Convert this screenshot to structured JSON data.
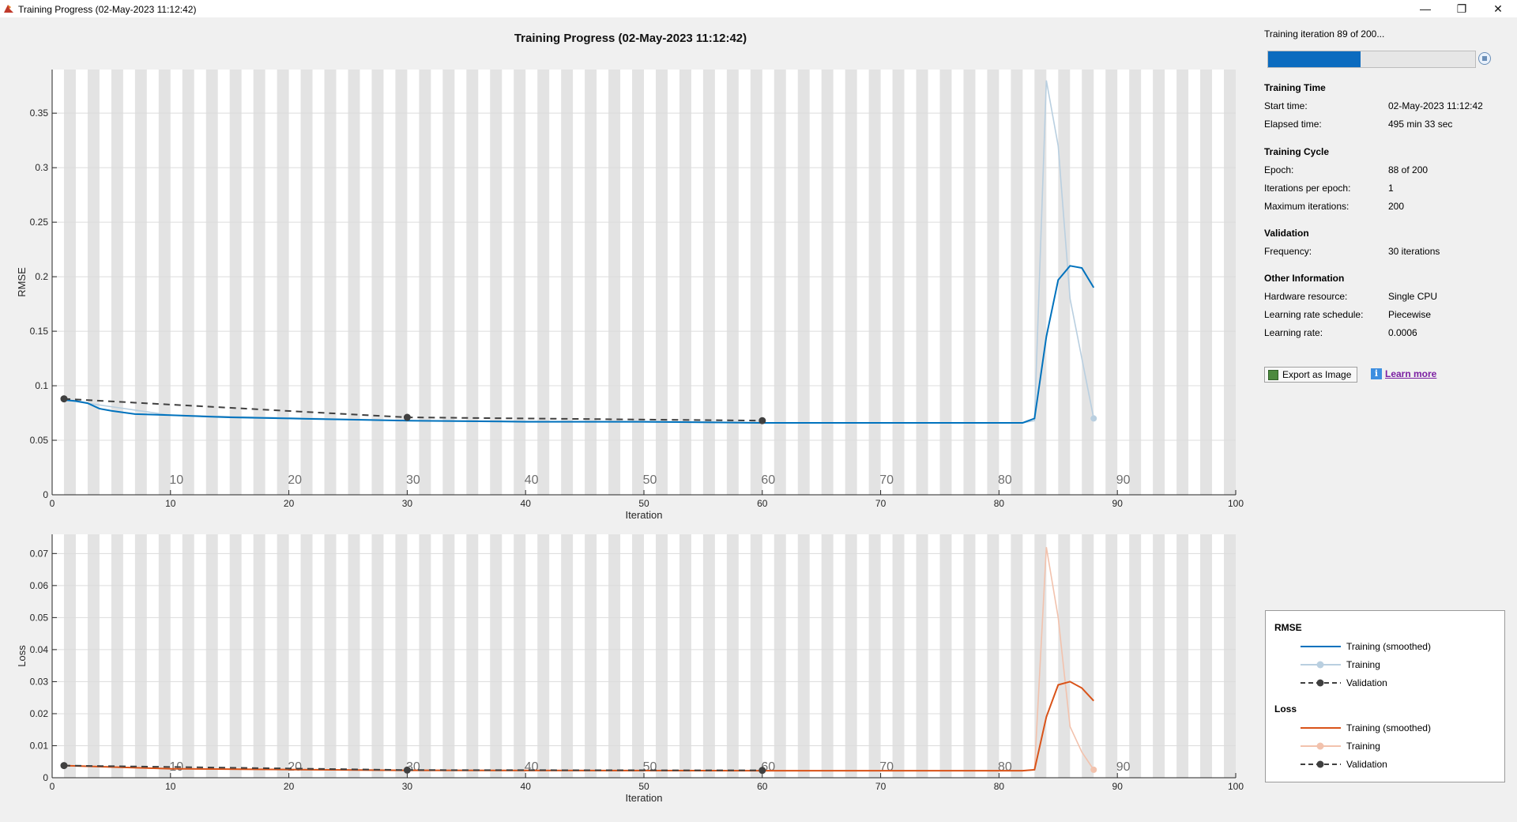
{
  "window": {
    "title": "Training Progress (02-May-2023 11:12:42)",
    "controls": {
      "minimize": "—",
      "restore": "❐",
      "close": "✕"
    }
  },
  "figure_title": "Training Progress (02-May-2023 11:12:42)",
  "progress": {
    "label": "Training iteration 89 of 200...",
    "fraction": 0.445
  },
  "colors": {
    "rmse_smoothed": "#0072bd",
    "rmse_training": "#b9cfe0",
    "loss_smoothed": "#d95319",
    "loss_training": "#f2c2ad",
    "validation": "#404040",
    "epoch_band": "#e3e3e3",
    "grid": "#dcdcdc",
    "accent": "#0b6bbf"
  },
  "info": {
    "training_time": {
      "heading": "Training Time",
      "rows": [
        {
          "label": "Start time:",
          "value": "02-May-2023 11:12:42"
        },
        {
          "label": "Elapsed time:",
          "value": "495 min 33 sec"
        }
      ]
    },
    "training_cycle": {
      "heading": "Training Cycle",
      "rows": [
        {
          "label": "Epoch:",
          "value": "88 of 200"
        },
        {
          "label": "Iterations per epoch:",
          "value": "1"
        },
        {
          "label": "Maximum iterations:",
          "value": "200"
        }
      ]
    },
    "validation": {
      "heading": "Validation",
      "rows": [
        {
          "label": "Frequency:",
          "value": "30 iterations"
        }
      ]
    },
    "other": {
      "heading": "Other Information",
      "rows": [
        {
          "label": "Hardware resource:",
          "value": "Single CPU"
        },
        {
          "label": "Learning rate schedule:",
          "value": "Piecewise"
        },
        {
          "label": "Learning rate:",
          "value": "0.0006"
        }
      ]
    }
  },
  "buttons": {
    "export": "Export as Image",
    "learn_more": "Learn more",
    "info_icon": "i"
  },
  "legend": {
    "rmse": {
      "heading": "RMSE",
      "items": [
        "Training (smoothed)",
        "Training",
        "Validation"
      ]
    },
    "loss": {
      "heading": "Loss",
      "items": [
        "Training (smoothed)",
        "Training",
        "Validation"
      ]
    }
  },
  "chart_data": [
    {
      "type": "line",
      "title": "Training Progress (02-May-2023 11:12:42)",
      "ylabel": "RMSE",
      "xlabel": "Iteration",
      "xlim": [
        0,
        100
      ],
      "ylim": [
        0,
        0.39
      ],
      "xticks": [
        0,
        10,
        20,
        30,
        40,
        50,
        60,
        70,
        80,
        90,
        100
      ],
      "xtick_labels": [
        "0",
        "10",
        "20",
        "30",
        "40",
        "50",
        "60",
        "70",
        "80",
        "90",
        "100"
      ],
      "yticks": [
        0,
        0.05,
        0.1,
        0.15,
        0.2,
        0.25,
        0.3,
        0.35
      ],
      "ytick_labels": [
        "0",
        "0.05",
        "0.1",
        "0.15",
        "0.2",
        "0.25",
        "0.3",
        "0.35"
      ],
      "epoch_labels": [
        {
          "x": 10.5,
          "label": "10"
        },
        {
          "x": 20.5,
          "label": "20"
        },
        {
          "x": 30.5,
          "label": "30"
        },
        {
          "x": 40.5,
          "label": "40"
        },
        {
          "x": 50.5,
          "label": "50"
        },
        {
          "x": 60.5,
          "label": "60"
        },
        {
          "x": 70.5,
          "label": "70"
        },
        {
          "x": 80.5,
          "label": "80"
        },
        {
          "x": 90.5,
          "label": "90"
        }
      ],
      "epochs_completed": 88,
      "series": [
        {
          "name": "Training (smoothed)",
          "x": [
            1,
            2,
            3,
            4,
            5,
            7,
            10,
            15,
            20,
            30,
            40,
            50,
            60,
            70,
            80,
            82,
            83,
            84,
            85,
            86,
            87,
            88
          ],
          "values": [
            0.087,
            0.086,
            0.084,
            0.079,
            0.077,
            0.074,
            0.073,
            0.071,
            0.07,
            0.068,
            0.067,
            0.067,
            0.066,
            0.066,
            0.066,
            0.066,
            0.07,
            0.145,
            0.197,
            0.21,
            0.208,
            0.19
          ]
        },
        {
          "name": "Training",
          "x": [
            1,
            10,
            30,
            60,
            80,
            82,
            83,
            84,
            85,
            86,
            87,
            88
          ],
          "values": [
            0.087,
            0.073,
            0.068,
            0.066,
            0.066,
            0.066,
            0.068,
            0.38,
            0.32,
            0.18,
            0.125,
            0.07
          ]
        },
        {
          "name": "Validation",
          "x": [
            1,
            30,
            60
          ],
          "values": [
            0.088,
            0.071,
            0.068
          ]
        }
      ]
    },
    {
      "type": "line",
      "ylabel": "Loss",
      "xlabel": "Iteration",
      "xlim": [
        0,
        100
      ],
      "ylim": [
        0,
        0.076
      ],
      "xticks": [
        0,
        10,
        20,
        30,
        40,
        50,
        60,
        70,
        80,
        90,
        100
      ],
      "xtick_labels": [
        "0",
        "10",
        "20",
        "30",
        "40",
        "50",
        "60",
        "70",
        "80",
        "90",
        "100"
      ],
      "yticks": [
        0,
        0.01,
        0.02,
        0.03,
        0.04,
        0.05,
        0.06,
        0.07
      ],
      "ytick_labels": [
        "0",
        "0.01",
        "0.02",
        "0.03",
        "0.04",
        "0.05",
        "0.06",
        "0.07"
      ],
      "epoch_labels": [
        {
          "x": 10.5,
          "label": "10"
        },
        {
          "x": 20.5,
          "label": "20"
        },
        {
          "x": 30.5,
          "label": "30"
        },
        {
          "x": 40.5,
          "label": "40"
        },
        {
          "x": 50.5,
          "label": "50"
        },
        {
          "x": 60.5,
          "label": "60"
        },
        {
          "x": 70.5,
          "label": "70"
        },
        {
          "x": 80.5,
          "label": "80"
        },
        {
          "x": 90.5,
          "label": "90"
        }
      ],
      "epochs_completed": 88,
      "series": [
        {
          "name": "Training (smoothed)",
          "x": [
            1,
            10,
            30,
            60,
            80,
            82,
            83,
            84,
            85,
            86,
            87,
            88
          ],
          "values": [
            0.0038,
            0.0028,
            0.0023,
            0.0022,
            0.0022,
            0.0022,
            0.0025,
            0.019,
            0.029,
            0.03,
            0.028,
            0.024
          ]
        },
        {
          "name": "Training",
          "x": [
            1,
            10,
            30,
            60,
            80,
            82,
            83,
            84,
            85,
            86,
            87,
            88
          ],
          "values": [
            0.0038,
            0.0028,
            0.0023,
            0.0022,
            0.0022,
            0.0022,
            0.0024,
            0.072,
            0.05,
            0.016,
            0.008,
            0.0025
          ]
        },
        {
          "name": "Validation",
          "x": [
            1,
            30,
            60
          ],
          "values": [
            0.0038,
            0.0024,
            0.0023
          ]
        }
      ]
    }
  ]
}
